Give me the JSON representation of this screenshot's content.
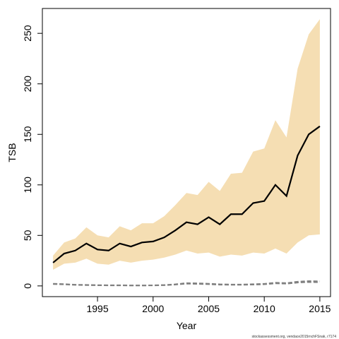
{
  "chart_data": {
    "type": "line",
    "x_label": "Year",
    "y_label": "TSB",
    "footnote": "stockassessment.org, vendace2015rnchFSnak, r7174",
    "x": [
      1991,
      1992,
      1993,
      1994,
      1995,
      1996,
      1997,
      1998,
      1999,
      2000,
      2001,
      2002,
      2003,
      2004,
      2005,
      2006,
      2007,
      2008,
      2009,
      2010,
      2011,
      2012,
      2013,
      2014,
      2015
    ],
    "xlim": [
      1990.04,
      2015.96
    ],
    "xticks": [
      1995,
      2000,
      2005,
      2010,
      2015
    ],
    "ylim": [
      -10.6,
      274.6
    ],
    "yticks": [
      0,
      50,
      100,
      150,
      200,
      250
    ],
    "band": {
      "color": "#f5deb3",
      "upper": [
        30,
        43,
        47,
        58,
        50,
        48,
        59,
        55,
        62,
        62,
        69,
        80,
        92,
        90,
        103,
        94,
        111,
        112,
        133,
        136,
        164,
        147,
        215,
        249,
        264
      ],
      "lower": [
        16,
        22,
        23,
        27,
        22,
        21,
        25,
        23,
        25,
        26,
        28,
        31,
        35,
        32,
        33,
        29,
        31,
        30,
        33,
        32,
        37,
        32,
        43,
        50,
        51
      ]
    },
    "series": [
      {
        "color": "#000000",
        "values": [
          23,
          32,
          35,
          42,
          36,
          35,
          42,
          39,
          43,
          44,
          48,
          55,
          63,
          61,
          68,
          61,
          71,
          71,
          82,
          84,
          100,
          89,
          129,
          150,
          158
        ]
      },
      {
        "color": "#808080",
        "dashed": true,
        "values": [
          2.2,
          1.8,
          1.2,
          1,
          0.8,
          0.7,
          0.7,
          0.5,
          0.5,
          0.6,
          0.9,
          1.6,
          2.8,
          2.6,
          2.2,
          1.6,
          1.4,
          1.4,
          1.7,
          2.1,
          3.2,
          2.8,
          4.2,
          4.8,
          4.6
        ]
      },
      {
        "color": "#808080",
        "dashed": true,
        "values": [
          1.8,
          1.5,
          1,
          0.8,
          0.6,
          0.5,
          0.5,
          0.4,
          0.4,
          0.5,
          0.7,
          1.3,
          2.2,
          2,
          1.7,
          1.2,
          1.1,
          1.1,
          1.3,
          1.6,
          2.5,
          2.2,
          3.3,
          3.8,
          3.6
        ]
      }
    ]
  }
}
